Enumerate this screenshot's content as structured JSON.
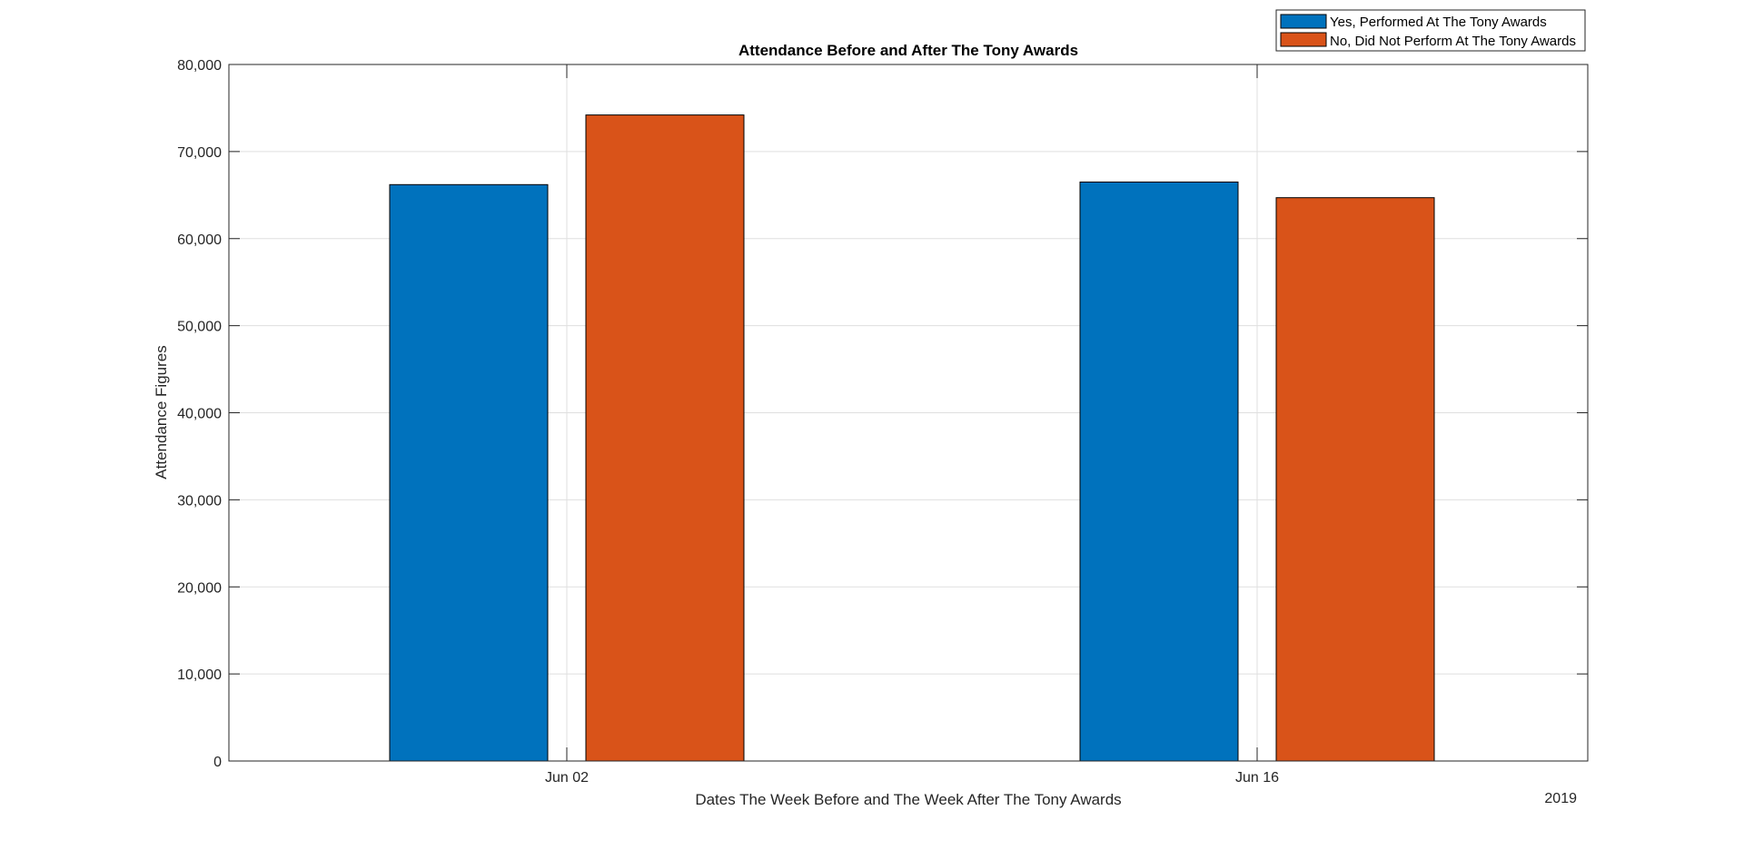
{
  "chart_data": {
    "type": "bar",
    "title": "Attendance Before and After The Tony Awards",
    "xlabel": "Dates The Week Before and The Week After The Tony Awards",
    "ylabel": "Attendance Figures",
    "x_secondary_label": "2019",
    "categories": [
      "Jun 02",
      "Jun 16"
    ],
    "series": [
      {
        "name": "Yes, Performed At The Tony Awards",
        "color": "#0072BD",
        "values": [
          66200,
          66500
        ]
      },
      {
        "name": "No, Did Not Perform At The Tony Awards",
        "color": "#D95319",
        "values": [
          74200,
          64700
        ]
      }
    ],
    "ylim": [
      0,
      80000
    ],
    "yticks": [
      0,
      10000,
      20000,
      30000,
      40000,
      50000,
      60000,
      70000,
      80000
    ],
    "ytick_labels": [
      "0",
      "10,000",
      "20,000",
      "30,000",
      "40,000",
      "50,000",
      "60,000",
      "70,000",
      "80,000"
    ],
    "grid": true,
    "legend_position": "top-right (outside)"
  }
}
